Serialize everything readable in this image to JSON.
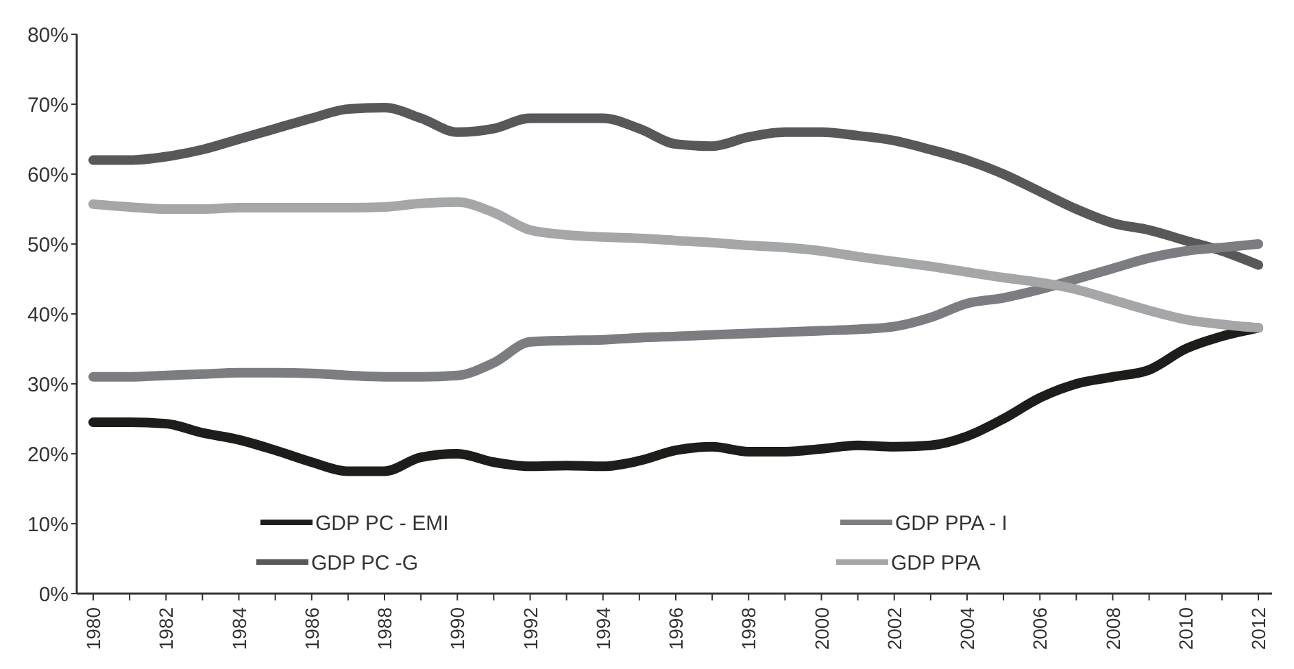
{
  "chart_data": {
    "type": "line",
    "categories": [
      "1980",
      null,
      "1982",
      null,
      "1984",
      null,
      "1986",
      null,
      "1988",
      null,
      "1990",
      null,
      "1992",
      null,
      "1994",
      null,
      "1996",
      null,
      "1998",
      null,
      "2000",
      null,
      "2002",
      null,
      "2004",
      null,
      "2006",
      null,
      "2008",
      null,
      "2010",
      null,
      "2012"
    ],
    "ylim": [
      0,
      80
    ],
    "yticks": [
      {
        "value": 0,
        "label": "0%"
      },
      {
        "value": 10,
        "label": "10%"
      },
      {
        "value": 20,
        "label": "20%"
      },
      {
        "value": 30,
        "label": "30%"
      },
      {
        "value": 40,
        "label": "40%"
      },
      {
        "value": 50,
        "label": "50%"
      },
      {
        "value": 60,
        "label": "60%"
      },
      {
        "value": 70,
        "label": "70%"
      },
      {
        "value": 80,
        "label": "80%"
      }
    ],
    "grid": false,
    "legend": "bottom",
    "marker": "none",
    "line_style": "solid",
    "series": [
      {
        "name": "GDP PC - EMI",
        "color": "#1d1d1b",
        "values": [
          24.5,
          24.5,
          24.3,
          23,
          22,
          20.5,
          18.8,
          17.5,
          17.5,
          19.5,
          20,
          18.8,
          18.2,
          18.3,
          18.2,
          19,
          20.5,
          21,
          20.3,
          20.3,
          20.7,
          21.2,
          21,
          21.2,
          22.5,
          25,
          28,
          30,
          31,
          32,
          35,
          36.8,
          38
        ]
      },
      {
        "name": "GDP PC -G",
        "color": "#58585a",
        "values": [
          62,
          62,
          62.5,
          63.5,
          65,
          66.5,
          68,
          69.3,
          69.5,
          68,
          66,
          66.5,
          68,
          68,
          68,
          66.5,
          64.3,
          64,
          65.3,
          66,
          66,
          65.5,
          64.8,
          63.5,
          62,
          60,
          57.5,
          55,
          53,
          52,
          50.5,
          49,
          47
        ]
      },
      {
        "name": "GDP PPA - I",
        "color": "#7c7d80",
        "values": [
          31,
          31,
          31.2,
          31.4,
          31.6,
          31.6,
          31.5,
          31.2,
          31,
          31,
          31.2,
          33,
          36,
          36.2,
          36.3,
          36.6,
          36.8,
          37,
          37.2,
          37.4,
          37.6,
          37.8,
          38.2,
          39.5,
          41.5,
          42.3,
          43.5,
          45,
          46.5,
          48,
          49,
          49.5,
          50
        ]
      },
      {
        "name": "GDP PPA",
        "color": "#a5a6a8",
        "values": [
          55.7,
          55.3,
          55,
          55,
          55.2,
          55.2,
          55.2,
          55.2,
          55.3,
          55.8,
          56,
          54.5,
          52,
          51.3,
          51,
          50.8,
          50.5,
          50.2,
          49.8,
          49.5,
          49,
          48.2,
          47.5,
          46.8,
          46,
          45.2,
          44.5,
          43.5,
          42,
          40.5,
          39.2,
          38.5,
          38
        ]
      }
    ]
  }
}
